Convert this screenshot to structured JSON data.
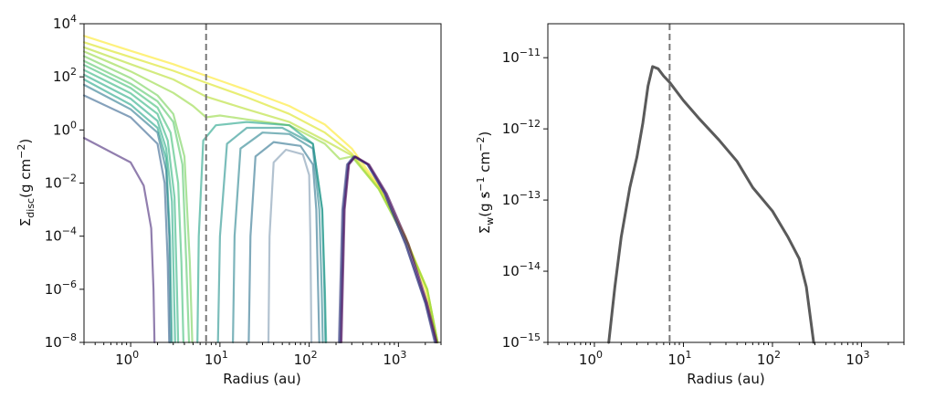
{
  "chart_data": [
    {
      "type": "line",
      "xscale": "log",
      "yscale": "log",
      "xlim": [
        0.3,
        3000
      ],
      "ylim": [
        1e-08,
        10000.0
      ],
      "xlabel": "Radius (au)",
      "ylabel_main": "Σ",
      "ylabel_sub": "disc",
      "ylabel_units": "(g cm",
      "ylabel_exp": "−2",
      "ylabel_close": ")",
      "x_ticks": [
        1,
        10,
        100,
        1000
      ],
      "x_tick_labels": [
        {
          "base": "10",
          "exp": "0"
        },
        {
          "base": "10",
          "exp": "1"
        },
        {
          "base": "10",
          "exp": "2"
        },
        {
          "base": "10",
          "exp": "3"
        }
      ],
      "y_ticks": [
        1e-08,
        1e-06,
        0.0001,
        0.01,
        1,
        100,
        10000
      ],
      "y_tick_labels": [
        {
          "base": "10",
          "exp": "−8"
        },
        {
          "base": "10",
          "exp": "−6"
        },
        {
          "base": "10",
          "exp": "−4"
        },
        {
          "base": "10",
          "exp": "−2"
        },
        {
          "base": "10",
          "exp": "0"
        },
        {
          "base": "10",
          "exp": "2"
        },
        {
          "base": "10",
          "exp": "4"
        }
      ],
      "vline": {
        "x": 7,
        "color": "#777777",
        "style": "dashed"
      },
      "colormap": "viridis",
      "curves": [
        {
          "color": "#fde725",
          "points": [
            [
              0.3,
              3500
            ],
            [
              1,
              950
            ],
            [
              3,
              300
            ],
            [
              7,
              110
            ],
            [
              20,
              32
            ],
            [
              60,
              8
            ],
            [
              150,
              1.6
            ],
            [
              300,
              0.2
            ],
            [
              600,
              0.008
            ],
            [
              1200,
              0.0001
            ],
            [
              2000,
              1e-06
            ],
            [
              2700,
              1e-08
            ]
          ]
        },
        {
          "color": "#d8e219",
          "points": [
            [
              0.3,
              2000
            ],
            [
              1,
              550
            ],
            [
              3,
              170
            ],
            [
              7,
              60
            ],
            [
              20,
              17
            ],
            [
              60,
              4
            ],
            [
              150,
              0.8
            ],
            [
              300,
              0.13
            ],
            [
              600,
              0.007
            ],
            [
              1200,
              9e-05
            ],
            [
              2100,
              1e-06
            ],
            [
              2750,
              1e-08
            ]
          ]
        },
        {
          "color": "#b5de2b",
          "points": [
            [
              0.3,
              1300
            ],
            [
              1,
              300
            ],
            [
              3,
              80
            ],
            [
              7,
              18
            ],
            [
              20,
              6
            ],
            [
              60,
              2
            ],
            [
              150,
              0.4
            ],
            [
              300,
              0.11
            ],
            [
              600,
              0.006
            ],
            [
              1200,
              8e-05
            ],
            [
              2100,
              1e-06
            ],
            [
              2750,
              1e-08
            ]
          ]
        },
        {
          "color": "#95d840",
          "points": [
            [
              0.3,
              900
            ],
            [
              1,
              160
            ],
            [
              3,
              25
            ],
            [
              5,
              8
            ],
            [
              7,
              3
            ],
            [
              10,
              3.5
            ],
            [
              20,
              2.5
            ],
            [
              60,
              1.5
            ],
            [
              150,
              0.3
            ],
            [
              220,
              0.08
            ],
            [
              300,
              0.1
            ],
            [
              600,
              0.006
            ],
            [
              1200,
              7e-05
            ],
            [
              2100,
              1e-06
            ],
            [
              2750,
              1e-08
            ]
          ]
        },
        {
          "color": "#73d056",
          "points": [
            [
              0.3,
              600
            ],
            [
              1,
              90
            ],
            [
              2,
              20
            ],
            [
              3,
              4
            ],
            [
              4,
              0.1
            ],
            [
              4.6,
              1e-05
            ],
            [
              4.9,
              1e-08
            ]
          ]
        },
        {
          "color": "#55c667",
          "points": [
            [
              0.3,
              400
            ],
            [
              1,
              55
            ],
            [
              2,
              12
            ],
            [
              3,
              2
            ],
            [
              3.8,
              0.05
            ],
            [
              4.2,
              1e-05
            ],
            [
              4.5,
              1e-08
            ]
          ]
        },
        {
          "color": "#3cbc75",
          "points": [
            [
              0.3,
              280
            ],
            [
              1,
              38
            ],
            [
              2,
              7
            ],
            [
              2.8,
              0.8
            ],
            [
              3.4,
              0.01
            ],
            [
              3.7,
              1e-05
            ],
            [
              3.9,
              1e-08
            ]
          ]
        },
        {
          "color": "#2db27d",
          "points": [
            [
              0.3,
              180
            ],
            [
              1,
              24
            ],
            [
              2,
              4
            ],
            [
              2.6,
              0.4
            ],
            [
              3.1,
              0.003
            ],
            [
              3.3,
              1e-06
            ],
            [
              3.4,
              1e-08
            ]
          ]
        },
        {
          "color": "#24aa83",
          "points": [
            [
              0.3,
              120
            ],
            [
              1,
              15
            ],
            [
              2,
              2.2
            ],
            [
              2.5,
              0.2
            ],
            [
              2.9,
              0.002
            ],
            [
              3.05,
              1e-06
            ],
            [
              3.15,
              1e-08
            ]
          ]
        },
        {
          "color": "#20a386",
          "points": [
            [
              0.3,
              80
            ],
            [
              1,
              9
            ],
            [
              2,
              1.2
            ],
            [
              2.5,
              0.08
            ],
            [
              2.75,
              0.0001
            ],
            [
              2.9,
              1e-08
            ]
          ]
        },
        {
          "color": "#2a788e",
          "points": [
            [
              0.3,
              50
            ],
            [
              1,
              6
            ],
            [
              2,
              0.8
            ],
            [
              2.5,
              0.03
            ],
            [
              2.7,
              0.0001
            ],
            [
              2.8,
              1e-08
            ]
          ]
        },
        {
          "color": "#33638d",
          "points": [
            [
              0.3,
              20
            ],
            [
              1,
              3
            ],
            [
              2,
              0.3
            ],
            [
              2.4,
              0.01
            ],
            [
              2.6,
              1e-05
            ],
            [
              2.7,
              1e-08
            ]
          ]
        },
        {
          "color": "#482878",
          "points": [
            [
              0.3,
              0.5
            ],
            [
              1,
              0.06
            ],
            [
              1.4,
              0.008
            ],
            [
              1.7,
              0.0002
            ],
            [
              1.8,
              1e-06
            ],
            [
              1.85,
              1e-08
            ]
          ]
        },
        {
          "color": "#1fa187",
          "points": [
            [
              5.6,
              1e-08
            ],
            [
              5.8,
              0.0001
            ],
            [
              6.5,
              0.4
            ],
            [
              9,
              1.5
            ],
            [
              20,
              2
            ],
            [
              60,
              1.5
            ],
            [
              110,
              0.3
            ],
            [
              140,
              0.001
            ],
            [
              150,
              1e-06
            ],
            [
              155,
              1e-08
            ]
          ]
        },
        {
          "color": "#21918c",
          "points": [
            [
              9.5,
              1e-08
            ],
            [
              10,
              0.0001
            ],
            [
              12,
              0.3
            ],
            [
              20,
              1.2
            ],
            [
              50,
              1.2
            ],
            [
              110,
              0.3
            ],
            [
              140,
              0.001
            ],
            [
              148,
              1e-06
            ],
            [
              152,
              1e-08
            ]
          ]
        },
        {
          "color": "#26828e",
          "points": [
            [
              14,
              1e-08
            ],
            [
              14.6,
              0.0001
            ],
            [
              17,
              0.2
            ],
            [
              30,
              0.8
            ],
            [
              60,
              0.7
            ],
            [
              110,
              0.2
            ],
            [
              130,
              0.001
            ],
            [
              138,
              1e-06
            ],
            [
              142,
              1e-08
            ]
          ]
        },
        {
          "color": "#2c728e",
          "points": [
            [
              21,
              1e-08
            ],
            [
              22,
              0.0001
            ],
            [
              25,
              0.1
            ],
            [
              40,
              0.35
            ],
            [
              80,
              0.25
            ],
            [
              110,
              0.05
            ],
            [
              120,
              0.001
            ],
            [
              126,
              1e-06
            ],
            [
              130,
              1e-08
            ]
          ]
        },
        {
          "color": "#7e9ab0",
          "points": [
            [
              35,
              1e-08
            ],
            [
              36,
              0.0001
            ],
            [
              40,
              0.06
            ],
            [
              55,
              0.18
            ],
            [
              85,
              0.12
            ],
            [
              100,
              0.02
            ],
            [
              103,
              0.0001
            ],
            [
              106,
              1e-08
            ]
          ]
        },
        {
          "color": "#3b528b",
          "points": [
            [
              220,
              1e-08
            ],
            [
              240,
              0.001
            ],
            [
              270,
              0.05
            ],
            [
              320,
              0.1
            ],
            [
              450,
              0.05
            ],
            [
              700,
              0.004
            ],
            [
              1200,
              5e-05
            ],
            [
              2000,
              3e-07
            ],
            [
              2600,
              1e-08
            ]
          ]
        },
        {
          "color": "#414487",
          "points": [
            [
              215,
              1e-08
            ],
            [
              235,
              0.001
            ],
            [
              265,
              0.05
            ],
            [
              315,
              0.1
            ],
            [
              450,
              0.05
            ],
            [
              700,
              0.004
            ],
            [
              1200,
              5e-05
            ],
            [
              2000,
              3e-07
            ],
            [
              2550,
              1e-08
            ]
          ]
        },
        {
          "color": "#472d7b",
          "points": [
            [
              225,
              1e-08
            ],
            [
              245,
              0.001
            ],
            [
              275,
              0.05
            ],
            [
              325,
              0.1
            ],
            [
              460,
              0.05
            ],
            [
              720,
              0.004
            ],
            [
              1250,
              5e-05
            ],
            [
              2050,
              3e-07
            ],
            [
              2650,
              1e-08
            ]
          ]
        },
        {
          "color": "#440154",
          "points": [
            [
              230,
              1e-08
            ],
            [
              250,
              0.001
            ],
            [
              280,
              0.05
            ],
            [
              330,
              0.1
            ],
            [
              470,
              0.05
            ],
            [
              740,
              0.004
            ],
            [
              1300,
              5e-05
            ],
            [
              2100,
              3e-07
            ],
            [
              2700,
              1e-08
            ]
          ]
        }
      ]
    },
    {
      "type": "line",
      "xscale": "log",
      "yscale": "log",
      "xlim": [
        0.3,
        3000
      ],
      "ylim": [
        1e-15,
        3e-11
      ],
      "xlabel": "Radius (au)",
      "ylabel_main": "Σ",
      "ylabel_sub": "w",
      "ylabel_units": "(g s",
      "ylabel_exp1": "−1",
      "ylabel_mid": " cm",
      "ylabel_exp2": "−2",
      "ylabel_close": ")",
      "x_ticks": [
        1,
        10,
        100,
        1000
      ],
      "x_tick_labels": [
        {
          "base": "10",
          "exp": "0"
        },
        {
          "base": "10",
          "exp": "1"
        },
        {
          "base": "10",
          "exp": "2"
        },
        {
          "base": "10",
          "exp": "3"
        }
      ],
      "y_ticks": [
        1e-15,
        1e-14,
        1e-13,
        1e-12,
        1e-11
      ],
      "y_tick_labels": [
        {
          "base": "10",
          "exp": "−15"
        },
        {
          "base": "10",
          "exp": "−14"
        },
        {
          "base": "10",
          "exp": "−13"
        },
        {
          "base": "10",
          "exp": "−12"
        },
        {
          "base": "10",
          "exp": "−11"
        }
      ],
      "vline": {
        "x": 7,
        "color": "#777777",
        "style": "dashed"
      },
      "series": [
        {
          "color": "#5a5a5a",
          "points": [
            [
              1.45,
              1e-15
            ],
            [
              1.7,
              6e-15
            ],
            [
              2,
              3e-14
            ],
            [
              2.5,
              1.5e-13
            ],
            [
              3,
              4e-13
            ],
            [
              3.5,
              1.2e-12
            ],
            [
              4,
              4e-12
            ],
            [
              4.5,
              7.5e-12
            ],
            [
              5.2,
              7e-12
            ],
            [
              6,
              5.5e-12
            ],
            [
              7,
              4.5e-12
            ],
            [
              10,
              2.5e-12
            ],
            [
              15,
              1.4e-12
            ],
            [
              25,
              7e-13
            ],
            [
              40,
              3.5e-13
            ],
            [
              60,
              1.5e-13
            ],
            [
              100,
              7e-14
            ],
            [
              150,
              3e-14
            ],
            [
              200,
              1.5e-14
            ],
            [
              240,
              6e-15
            ],
            [
              270,
              2e-15
            ],
            [
              290,
              1e-15
            ]
          ]
        }
      ]
    }
  ]
}
